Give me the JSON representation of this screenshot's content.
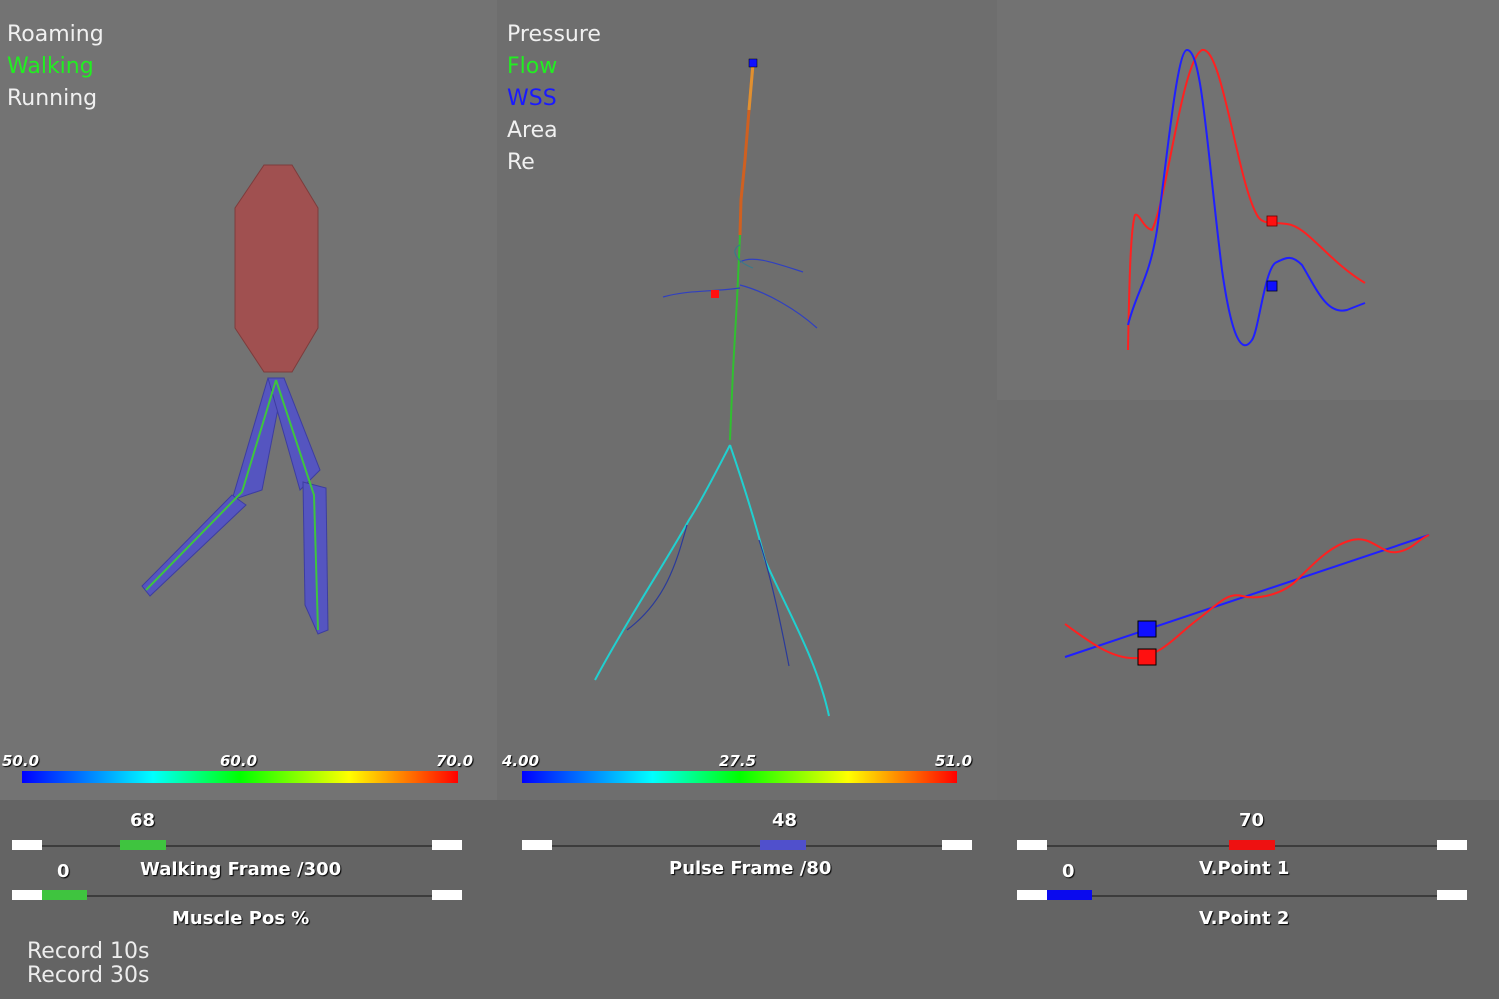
{
  "left_panel": {
    "menu": [
      {
        "label": "Roaming",
        "color": "#f0f0f0"
      },
      {
        "label": "Walking",
        "color": "#22ee22"
      },
      {
        "label": "Running",
        "color": "#f0f0f0"
      }
    ],
    "colorbar": {
      "min": "50.0",
      "mid": "60.0",
      "max": "70.0"
    }
  },
  "mid_panel": {
    "menu": [
      {
        "label": "Pressure",
        "color": "#f0f0f0"
      },
      {
        "label": "Flow",
        "color": "#22ee22"
      },
      {
        "label": "WSS",
        "color": "#1a1aff"
      },
      {
        "label": "Area",
        "color": "#f0f0f0"
      },
      {
        "label": "Re",
        "color": "#f0f0f0"
      }
    ],
    "colorbar": {
      "min": "4.00",
      "mid": "27.5",
      "max": "51.0"
    }
  },
  "sliders": {
    "walking_frame": {
      "label": "Walking Frame /300",
      "value": "68",
      "fraction": 0.227,
      "color": "#3fc43f"
    },
    "muscle_pos": {
      "label": "Muscle Pos %",
      "value": "0",
      "fraction": 0.0,
      "color": "#3fc43f"
    },
    "pulse_frame": {
      "label": "Pulse Frame /80",
      "value": "48",
      "fraction": 0.6,
      "color": "#5050cc"
    },
    "vpoint1": {
      "label": "V.Point 1",
      "value": "70",
      "fraction": 0.7,
      "color": "#ee1111"
    },
    "vpoint2": {
      "label": "V.Point 2",
      "value": "0",
      "fraction": 0.0,
      "color": "#0a0aee"
    }
  },
  "record_buttons": {
    "r10": "Record 10s",
    "r30": "Record 30s"
  },
  "colors": {
    "blue_curve": "#1f1fff",
    "red_curve": "#ff2020",
    "body_fill": "#a05050",
    "leg_fill": "#5555c0"
  }
}
